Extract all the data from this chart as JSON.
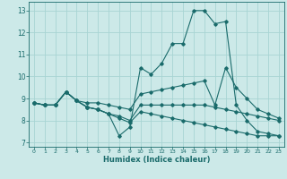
{
  "xlabel": "Humidex (Indice chaleur)",
  "xlim": [
    -0.5,
    23.5
  ],
  "ylim": [
    6.8,
    13.4
  ],
  "xticks": [
    0,
    1,
    2,
    3,
    4,
    5,
    6,
    7,
    8,
    9,
    10,
    11,
    12,
    13,
    14,
    15,
    16,
    17,
    18,
    19,
    20,
    21,
    22,
    23
  ],
  "yticks": [
    7,
    8,
    9,
    10,
    11,
    12,
    13
  ],
  "bg_color": "#cce9e8",
  "grid_color": "#a8d4d3",
  "line_color": "#1a6b6b",
  "series": [
    [
      8.8,
      8.7,
      8.7,
      9.3,
      8.9,
      8.6,
      8.5,
      8.3,
      7.3,
      7.7,
      10.4,
      10.1,
      10.6,
      11.5,
      11.5,
      13.0,
      13.0,
      12.4,
      12.5,
      8.7,
      8.0,
      7.5,
      7.4,
      7.3
    ],
    [
      8.8,
      8.7,
      8.7,
      9.3,
      8.9,
      8.8,
      8.8,
      8.7,
      8.6,
      8.5,
      9.2,
      9.3,
      9.4,
      9.5,
      9.6,
      9.7,
      9.8,
      8.7,
      10.4,
      9.5,
      9.0,
      8.5,
      8.3,
      8.1
    ],
    [
      8.8,
      8.7,
      8.7,
      9.3,
      8.9,
      8.6,
      8.5,
      8.3,
      8.2,
      8.0,
      8.7,
      8.7,
      8.7,
      8.7,
      8.7,
      8.7,
      8.7,
      8.6,
      8.5,
      8.4,
      8.3,
      8.2,
      8.1,
      8.0
    ],
    [
      8.8,
      8.7,
      8.7,
      9.3,
      8.9,
      8.6,
      8.5,
      8.3,
      8.1,
      7.9,
      8.4,
      8.3,
      8.2,
      8.1,
      8.0,
      7.9,
      7.8,
      7.7,
      7.6,
      7.5,
      7.4,
      7.3,
      7.3,
      7.3
    ]
  ]
}
